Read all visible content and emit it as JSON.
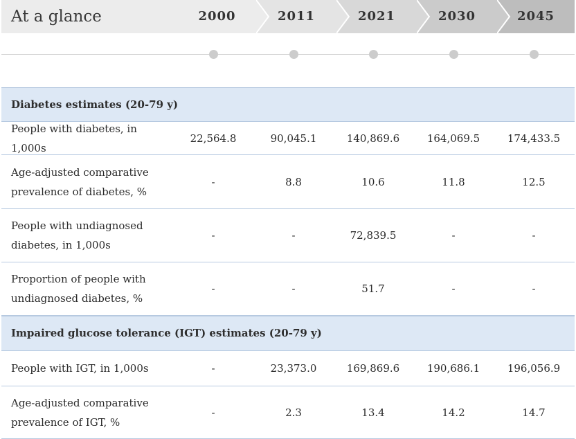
{
  "header": {
    "title": "At a glance",
    "years": [
      "2000",
      "2011",
      "2021",
      "2030",
      "2045"
    ]
  },
  "sections": [
    {
      "title": "Diabetes estimates (20-79 y)",
      "rows": [
        {
          "label": "People with diabetes, in 1,000s",
          "values": [
            "22,564.8",
            "90,045.1",
            "140,869.6",
            "164,069.5",
            "174,433.5"
          ]
        },
        {
          "label": "Age-adjusted comparative prevalence of diabetes, %",
          "values": [
            "-",
            "8.8",
            "10.6",
            "11.8",
            "12.5"
          ]
        },
        {
          "label": "People with undiagnosed diabetes, in 1,000s",
          "values": [
            "-",
            "-",
            "72,839.5",
            "-",
            "-"
          ]
        },
        {
          "label": "Proportion of people with undiagnosed diabetes, %",
          "values": [
            "-",
            "-",
            "51.7",
            "-",
            "-"
          ]
        }
      ]
    },
    {
      "title": "Impaired glucose tolerance (IGT) estimates (20-79 y)",
      "rows": [
        {
          "label": "People with IGT, in 1,000s",
          "values": [
            "-",
            "23,373.0",
            "169,869.6",
            "190,686.1",
            "196,056.9"
          ]
        },
        {
          "label": "Age-adjusted comparative prevalence of IGT, %",
          "values": [
            "-",
            "2.3",
            "13.4",
            "14.2",
            "14.7"
          ]
        }
      ]
    }
  ],
  "colors": {
    "header_bg": "#ececec",
    "year_fills": [
      "#ececec",
      "#e4e4e4",
      "#d8d8d8",
      "#cbcbcb",
      "#bdbdbd"
    ],
    "section_bg": "#dde8f5",
    "row_border": "#b6c9e0",
    "timeline_dot": "#cccccc"
  }
}
